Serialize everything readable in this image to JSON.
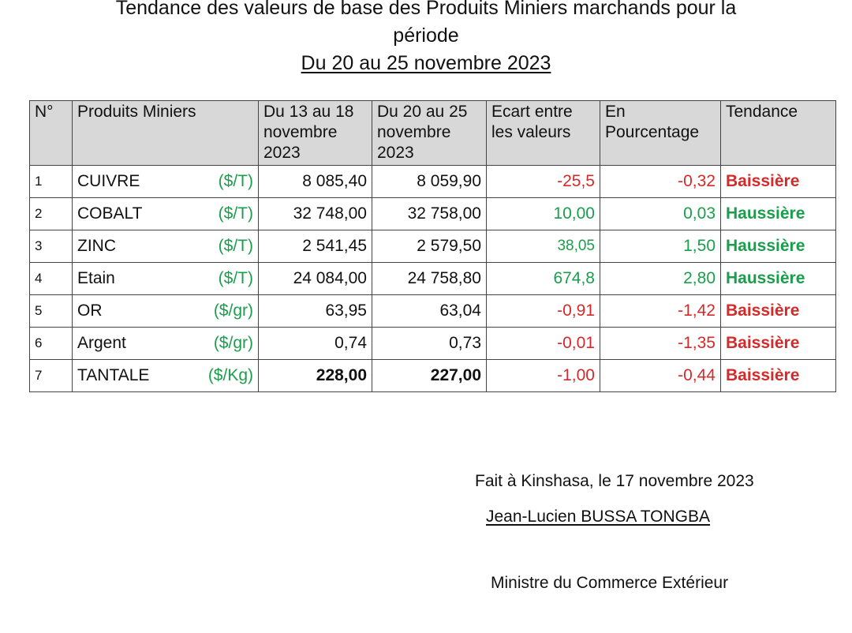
{
  "title": {
    "line1": "Tendance des valeurs de base des Produits Miniers marchands pour la",
    "line2": "période",
    "line3": "Du 20 au 25 novembre 2023"
  },
  "table": {
    "headers": {
      "num": "N°",
      "product": "Produits  Miniers",
      "period1": "Du 13 au 18 novembre 2023",
      "period2": "Du 20 au 25 novembre 2023",
      "ecart": "Ecart entre les valeurs",
      "pct": "En Pourcentage",
      "trend": "Tendance"
    },
    "rows": [
      {
        "num": "1",
        "product": "CUIVRE",
        "unit": "($/T)",
        "period1": "8 085,40",
        "period2": "8 059,90",
        "ecart": "-25,5",
        "pct": "-0,32",
        "trend": "Baissière"
      },
      {
        "num": "2",
        "product": "COBALT",
        "unit": "($/T)",
        "period1": "32 748,00",
        "period2": "32 758,00",
        "ecart": "10,00",
        "pct": "0,03",
        "trend": "Haussière"
      },
      {
        "num": "3",
        "product": "ZINC",
        "unit": "($/T)",
        "period1": "2 541,45",
        "period2": "2 579,50",
        "ecart": "38,05",
        "pct": "1,50",
        "trend": "Haussière"
      },
      {
        "num": "4",
        "product": "Etain",
        "unit": "($/T)",
        "period1": "24 084,00",
        "period2": "24 758,80",
        "ecart": "674,8",
        "pct": "2,80",
        "trend": "Haussière"
      },
      {
        "num": "5",
        "product": "OR",
        "unit": "($/gr)",
        "period1": "63,95",
        "period2": "63,04",
        "ecart": "-0,91",
        "pct": "-1,42",
        "trend": "Baissière"
      },
      {
        "num": "6",
        "product": "Argent",
        "unit": "($/gr)",
        "period1": "0,74",
        "period2": "0,73",
        "ecart": "-0,01",
        "pct": "-1,35",
        "trend": "Baissière"
      },
      {
        "num": "7",
        "product": "TANTALE",
        "unit": "($/Kg)",
        "period1": "228,00",
        "period2": "227,00",
        "ecart": "-1,00",
        "pct": "-0,44",
        "trend": "Baissière"
      }
    ]
  },
  "footer": {
    "place_date": "Fait à Kinshasa, le 17 novembre 2023",
    "signatory": "Jean-Lucien BUSSA TONGBA",
    "role": "Ministre du Commerce Extérieur"
  },
  "colors": {
    "negative": "#d42a2a",
    "positive": "#1a9e4b",
    "header_bg": "#d8d8d8"
  }
}
